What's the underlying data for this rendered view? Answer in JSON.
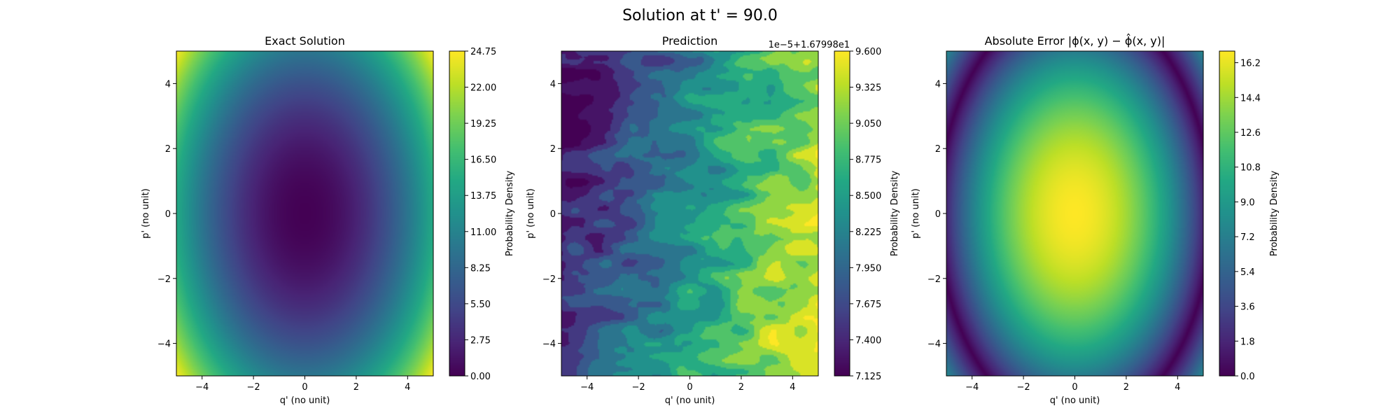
{
  "figure": {
    "suptitle": "Solution at t' = 90.0"
  },
  "colormap": {
    "name": "viridis",
    "stops": [
      "#440154",
      "#482475",
      "#414487",
      "#355f8d",
      "#2a788e",
      "#21918c",
      "#22a884",
      "#44bf70",
      "#7ad151",
      "#bddf26",
      "#fde725"
    ]
  },
  "chart_data": [
    {
      "type": "heatmap",
      "title": "Exact Solution",
      "xlabel": "q' (no unit)",
      "ylabel": "p' (no unit)",
      "xlim": [
        -5,
        5
      ],
      "ylim": [
        -5,
        5
      ],
      "xticks": [
        -4,
        -2,
        0,
        2,
        4
      ],
      "yticks": [
        -4,
        -2,
        0,
        2,
        4
      ],
      "xtick_labels": [
        "−4",
        "−2",
        "0",
        "2",
        "4"
      ],
      "ytick_labels": [
        "−4",
        "−2",
        "0",
        "2",
        "4"
      ],
      "field": "radial_quadratic",
      "value_range": [
        0.0,
        24.75
      ],
      "colorbar": {
        "label": "Probability Density",
        "min": 0.0,
        "max": 24.75,
        "ticks": [
          0.0,
          2.75,
          5.5,
          8.25,
          11.0,
          13.75,
          16.5,
          19.25,
          22.0,
          24.75
        ],
        "tick_labels": [
          "0.00",
          "2.75",
          "5.50",
          "8.25",
          "11.00",
          "13.75",
          "16.50",
          "19.25",
          "22.00",
          "24.75"
        ],
        "offset_text": ""
      }
    },
    {
      "type": "heatmap",
      "title": "Prediction",
      "xlabel": "q' (no unit)",
      "ylabel": "p' (no unit)",
      "xlim": [
        -5,
        5
      ],
      "ylim": [
        -5,
        5
      ],
      "xticks": [
        -4,
        -2,
        0,
        2,
        4
      ],
      "yticks": [
        -4,
        -2,
        0,
        2,
        4
      ],
      "xtick_labels": [
        "−4",
        "−2",
        "0",
        "2",
        "4"
      ],
      "ytick_labels": [
        "−4",
        "−2",
        "0",
        "2",
        "4"
      ],
      "field": "diagonal_gradient_contours",
      "value_range": [
        7.2,
        9.4
      ],
      "colorbar": {
        "label": "Probability Density",
        "min": 7.125,
        "max": 9.6,
        "ticks": [
          7.125,
          7.4,
          7.675,
          7.95,
          8.225,
          8.5,
          8.775,
          9.05,
          9.325,
          9.6
        ],
        "tick_labels": [
          "7.125",
          "7.400",
          "7.675",
          "7.950",
          "8.225",
          "8.500",
          "8.775",
          "9.050",
          "9.325",
          "9.600"
        ],
        "offset_text": "1e−5+1.67998e1"
      }
    },
    {
      "type": "heatmap",
      "title": "Absolute Error |ϕ(x, y) − ϕ̂(x, y)|",
      "xlabel": "q' (no unit)",
      "ylabel": "p' (no unit)",
      "xlim": [
        -5,
        5
      ],
      "ylim": [
        -5,
        5
      ],
      "xticks": [
        -4,
        -2,
        0,
        2,
        4
      ],
      "yticks": [
        -4,
        -2,
        0,
        2,
        4
      ],
      "xtick_labels": [
        "−4",
        "−2",
        "0",
        "2",
        "4"
      ],
      "ytick_labels": [
        "−4",
        "−2",
        "0",
        "2",
        "4"
      ],
      "field": "abs_error",
      "value_range": [
        0.0,
        16.8
      ],
      "colorbar": {
        "label": "Probability Density",
        "min": 0.0,
        "max": 16.8,
        "ticks": [
          0.0,
          1.8,
          3.6,
          5.4,
          7.2,
          9.0,
          10.8,
          12.6,
          14.4,
          16.2
        ],
        "tick_labels": [
          "0.0",
          "1.8",
          "3.6",
          "5.4",
          "7.2",
          "9.0",
          "10.8",
          "12.6",
          "14.4",
          "16.2"
        ],
        "offset_text": ""
      }
    }
  ]
}
